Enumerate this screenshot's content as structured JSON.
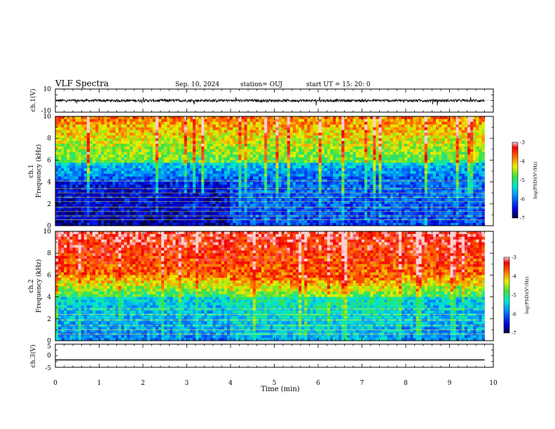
{
  "header": {
    "title": "VLF Spectra",
    "date": "Sep. 10, 2024",
    "station": "station= OUJ",
    "start": "start  UT =   15: 20: 0"
  },
  "chart_data": [
    {
      "type": "line",
      "name": "ch.1 waveform",
      "ylabel": "ch.1(V)",
      "ylim": [
        -10,
        10
      ],
      "y_ticks": [
        "10",
        "-10"
      ],
      "xlim": [
        0,
        10
      ],
      "level": 0,
      "amplitude": 1.2
    },
    {
      "type": "heatmap",
      "name": "ch.1 spectrogram",
      "ylabel_line1": "ch.1",
      "ylabel_line2": "Frequency (kHz)",
      "ylim": [
        0,
        10
      ],
      "y_ticks": [
        "0",
        "2",
        "4",
        "6",
        "8",
        "10"
      ],
      "xlim": [
        0,
        9.8
      ],
      "colorbar": {
        "label": "log(PSD)(V²/Hz)",
        "range": [
          -7,
          -3
        ],
        "ticks": [
          "-3",
          "-4",
          "-5",
          "-6",
          "-7"
        ]
      }
    },
    {
      "type": "heatmap",
      "name": "ch.2 spectrogram",
      "ylabel_line1": "ch.2",
      "ylabel_line2": "Frequency (kHz)",
      "ylim": [
        0,
        10
      ],
      "y_ticks": [
        "0",
        "2",
        "4",
        "6",
        "8",
        "10"
      ],
      "xlim": [
        0,
        9.8
      ],
      "colorbar": {
        "label": "log(PSD)(V²/Hz)",
        "range": [
          -7,
          -3
        ],
        "ticks": [
          "-3",
          "-4",
          "-5",
          "-6",
          "-7"
        ]
      }
    },
    {
      "type": "line",
      "name": "ch.3 waveform",
      "ylabel": "ch.3(V)",
      "ylim": [
        -5,
        5
      ],
      "y_ticks": [
        "5",
        "0",
        "-5"
      ],
      "xlim": [
        0,
        10
      ],
      "level": -1.8
    }
  ],
  "x_axis": {
    "label": "Time (min)",
    "range": [
      0,
      10
    ],
    "ticks": [
      "0",
      "1",
      "2",
      "3",
      "4",
      "5",
      "6",
      "7",
      "8",
      "9",
      "10"
    ]
  },
  "colors": {
    "frame": "#000000",
    "background": "#ffffff"
  }
}
